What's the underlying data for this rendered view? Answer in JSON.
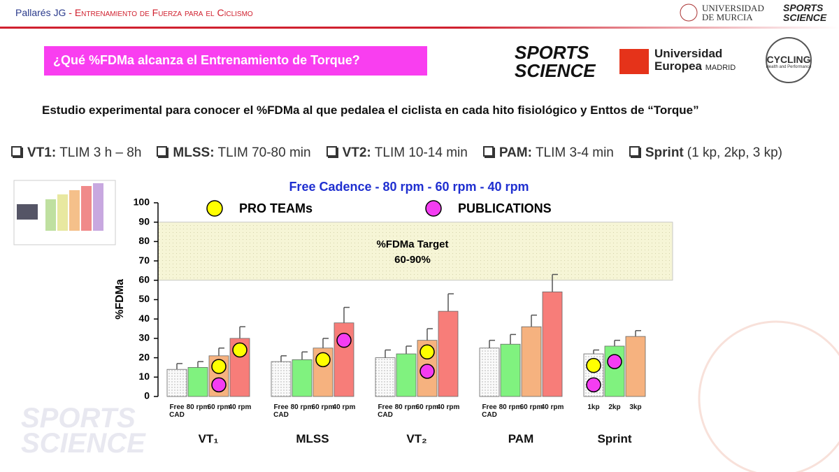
{
  "header": {
    "author": "Pallarés JG",
    "separator": "-",
    "course": "Entrenamiento de Fuerza para el Ciclismo"
  },
  "logos": {
    "um": [
      "UNIVERSIDAD",
      "DE MURCIA"
    ],
    "hp": [
      "SPORTS",
      "SCIENCE"
    ],
    "ue": [
      "Universidad",
      "Europea",
      "MADRID"
    ],
    "cycling": [
      "CYCLING",
      "Health and Performance"
    ]
  },
  "banner": "¿Qué %FDMa alcanza el Entrenamiento de Torque?",
  "subtitle": "Estudio experimental para conocer el %FDMa al que pedalea el ciclista en cada hito fisiológico y Enttos de “Torque”",
  "checklist": [
    {
      "key": "VT1:",
      "text": "TLIM 3 h – 8h"
    },
    {
      "key": "MLSS:",
      "text": "TLIM 70-80 min"
    },
    {
      "key": "VT2:",
      "text": "TLIM 10-14 min"
    },
    {
      "key": "PAM:",
      "text": "TLIM 3-4 min"
    },
    {
      "key": "Sprint",
      "text": "(1 kp, 2kp, 3 kp)"
    }
  ],
  "chart_data": {
    "type": "bar",
    "title": "Free Cadence - 80 rpm - 60 rpm - 40 rpm",
    "y_label": "%FDMa",
    "ylim": [
      0,
      100
    ],
    "yticks": [
      0,
      10,
      20,
      30,
      40,
      50,
      60,
      70,
      80,
      90,
      100
    ],
    "target": {
      "range": [
        60,
        90
      ],
      "label": "%FDMa Target",
      "range_label": "60-90%",
      "color": "#f6f5d6"
    },
    "colors": [
      "#f4f4f4",
      "#80f27f",
      "#f6b27f",
      "#f77d79"
    ],
    "hatch": [
      "dots",
      null,
      null,
      null
    ],
    "markers": [
      {
        "name": "PRO TEAMs",
        "color": "#ffff00"
      },
      {
        "name": "PUBLICATIONS",
        "color": "#f43df2"
      }
    ],
    "groups": [
      {
        "name": "VT₁",
        "categories": [
          "Free CAD",
          "80 rpm",
          "60 rpm",
          "40 rpm"
        ],
        "values": [
          14,
          15,
          21,
          30
        ],
        "errors": [
          3,
          3,
          4,
          6
        ],
        "pro_teams": [
          null,
          null,
          15.5,
          24
        ],
        "publications": [
          null,
          null,
          6,
          null
        ]
      },
      {
        "name": "MLSS",
        "categories": [
          "Free CAD",
          "80 rpm",
          "60 rpm",
          "40 rpm"
        ],
        "values": [
          18,
          19,
          25,
          38
        ],
        "errors": [
          3,
          4,
          5,
          8
        ],
        "pro_teams": [
          null,
          null,
          19,
          null
        ],
        "publications": [
          null,
          null,
          null,
          29
        ]
      },
      {
        "name": "VT₂",
        "categories": [
          "Free CAD",
          "80 rpm",
          "60 rpm",
          "40 rpm"
        ],
        "values": [
          20,
          22,
          29,
          44
        ],
        "errors": [
          4,
          4,
          6,
          9
        ],
        "pro_teams": [
          null,
          null,
          23,
          null
        ],
        "publications": [
          null,
          null,
          13,
          null
        ]
      },
      {
        "name": "PAM",
        "categories": [
          "Free CAD",
          "80 rpm",
          "60 rpm",
          "40 rpm"
        ],
        "values": [
          25,
          27,
          36,
          54
        ],
        "errors": [
          4,
          5,
          6,
          9
        ],
        "pro_teams": [
          null,
          null,
          null,
          null
        ],
        "publications": [
          null,
          null,
          null,
          null
        ]
      },
      {
        "name": "Sprint",
        "categories": [
          "1kp",
          "2kp",
          "3kp"
        ],
        "values": [
          22,
          26,
          31
        ],
        "errors": [
          2,
          3,
          3
        ],
        "pro_teams": [
          16,
          null,
          null
        ],
        "publications": [
          6,
          18,
          null
        ]
      }
    ]
  }
}
